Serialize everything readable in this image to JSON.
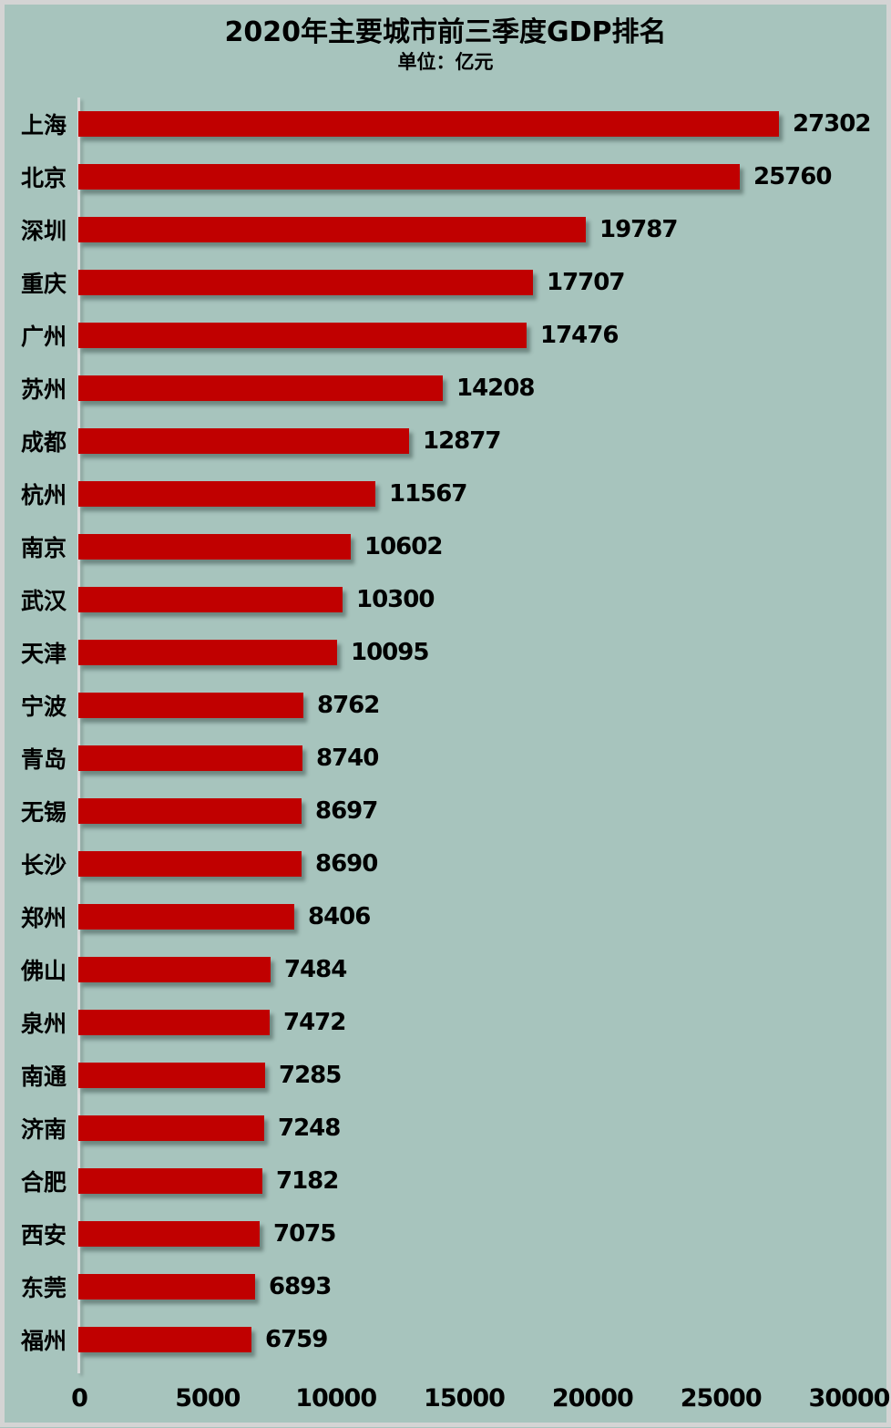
{
  "title": "2020年主要城市前三季度GDP排名",
  "subtitle": "单位：亿元",
  "colors": {
    "background": "#a7c4bd",
    "bar": "#c00000",
    "frame_border": "#d4d4d4",
    "axis_line": "#dcdcdc",
    "text": "#000000"
  },
  "chart_data": {
    "type": "bar",
    "orientation": "horizontal",
    "title": "2020年主要城市前三季度GDP排名",
    "subtitle": "单位：亿元",
    "xlabel": "",
    "ylabel": "",
    "xlim": [
      0,
      30000
    ],
    "x_ticks": [
      0,
      5000,
      10000,
      15000,
      20000,
      25000,
      30000
    ],
    "grid": false,
    "legend": false,
    "value_labels_shown": true,
    "categories": [
      "上海",
      "北京",
      "深圳",
      "重庆",
      "广州",
      "苏州",
      "成都",
      "杭州",
      "南京",
      "武汉",
      "天津",
      "宁波",
      "青岛",
      "无锡",
      "长沙",
      "郑州",
      "佛山",
      "泉州",
      "南通",
      "济南",
      "合肥",
      "西安",
      "东莞",
      "福州"
    ],
    "values": [
      27302,
      25760,
      19787,
      17707,
      17476,
      14208,
      12877,
      11567,
      10602,
      10300,
      10095,
      8762,
      8740,
      8697,
      8690,
      8406,
      7484,
      7472,
      7285,
      7248,
      7182,
      7075,
      6893,
      6759
    ]
  }
}
